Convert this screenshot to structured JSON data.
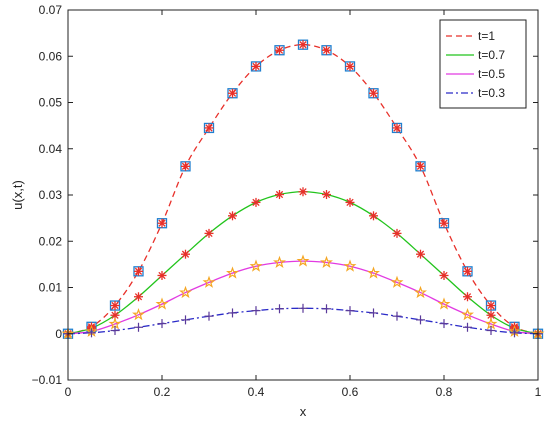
{
  "chart_data": {
    "type": "line",
    "xlabel": "x",
    "ylabel": "u(x,t)",
    "xlim": [
      0,
      1
    ],
    "ylim": [
      -0.01,
      0.07
    ],
    "grid": false,
    "legend_position": "top-right",
    "x_ticks": [
      "0",
      "0.2",
      "0.4",
      "0.6",
      "0.8",
      "1"
    ],
    "y_ticks": [
      "−0.01",
      "0",
      "0.01",
      "0.02",
      "0.03",
      "0.04",
      "0.05",
      "0.06",
      "0.07"
    ],
    "x": [
      0,
      0.05,
      0.1,
      0.15,
      0.2,
      0.25,
      0.3,
      0.35,
      0.4,
      0.45,
      0.5,
      0.55,
      0.6,
      0.65,
      0.7,
      0.75,
      0.8,
      0.85,
      0.9,
      0.95,
      1
    ],
    "series": [
      {
        "name": "t=1",
        "color": "#e8302a",
        "line_style": "dashed",
        "markers": [
          "square",
          "asterisk"
        ],
        "marker_colors": [
          "#1f7fd0",
          "#e8302a"
        ],
        "values": [
          0,
          0.0015,
          0.0061,
          0.0135,
          0.0239,
          0.0362,
          0.0445,
          0.052,
          0.0578,
          0.0613,
          0.0625,
          0.0613,
          0.0578,
          0.052,
          0.0445,
          0.0362,
          0.0239,
          0.0135,
          0.0061,
          0.0015,
          0
        ]
      },
      {
        "name": "t=0.7",
        "color": "#22c41c",
        "line_style": "solid",
        "markers": [
          "asterisk"
        ],
        "marker_colors": [
          "#e8302a"
        ],
        "values": [
          0,
          0.0012,
          0.004,
          0.008,
          0.0126,
          0.0172,
          0.0217,
          0.0255,
          0.0284,
          0.0301,
          0.0307,
          0.0301,
          0.0284,
          0.0255,
          0.0217,
          0.0172,
          0.0126,
          0.008,
          0.004,
          0.0012,
          0
        ]
      },
      {
        "name": "t=0.5",
        "color": "#e23be2",
        "line_style": "solid",
        "markers": [
          "star"
        ],
        "marker_colors": [
          "#f5a623"
        ],
        "values": [
          0,
          0.0005,
          0.0021,
          0.0041,
          0.0064,
          0.0089,
          0.0111,
          0.0131,
          0.0146,
          0.0154,
          0.0157,
          0.0154,
          0.0146,
          0.0131,
          0.0111,
          0.0089,
          0.0064,
          0.0041,
          0.0021,
          0.0005,
          0
        ]
      },
      {
        "name": "t=0.3",
        "color": "#2b2bc8",
        "line_style": "dashdot",
        "markers": [
          "plus"
        ],
        "marker_colors": [
          "#5a3a9a"
        ],
        "values": [
          0,
          0.0002,
          0.0007,
          0.0014,
          0.0022,
          0.003,
          0.0038,
          0.0045,
          0.005,
          0.0054,
          0.0055,
          0.0054,
          0.005,
          0.0045,
          0.0038,
          0.003,
          0.0022,
          0.0014,
          0.0007,
          0.0002,
          0
        ]
      }
    ]
  }
}
